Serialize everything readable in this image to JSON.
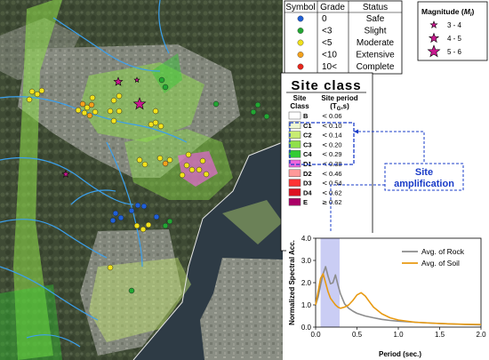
{
  "grade_legend": {
    "headers": [
      "Symbol",
      "Grade",
      "Status"
    ],
    "rows": [
      {
        "color": "#1f5fd6",
        "grade": "0",
        "status": "Safe"
      },
      {
        "color": "#22a632",
        "grade": "<3",
        "status": "Slight"
      },
      {
        "color": "#f1e21b",
        "grade": "<5",
        "status": "Moderate"
      },
      {
        "color": "#f4a11c",
        "grade": "<10",
        "status": "Extensive"
      },
      {
        "color": "#e8261c",
        "grade": "10<",
        "status": "Complete"
      }
    ]
  },
  "magnitude_legend": {
    "title": "Magnitude (",
    "title_ml": "M",
    "title_sub": "l",
    "title_end": ")",
    "star_color": "#c8188e",
    "items": [
      {
        "label": "3 - 4",
        "size": "small"
      },
      {
        "label": "4 - 5",
        "size": "medium"
      },
      {
        "label": "5 - 6",
        "size": "large"
      }
    ]
  },
  "site_class": {
    "title": "Site class",
    "col_class": "Site",
    "col_class2": "Class",
    "col_period": "Site period",
    "col_period2": "(T",
    "col_period_sub": "G",
    "col_period_end": ",s)",
    "rows": [
      {
        "code": "B",
        "op": "<",
        "value": "0.06",
        "color": "#ffffff"
      },
      {
        "code": "C1",
        "op": "<",
        "value": "0.10",
        "color": "#eef7d2"
      },
      {
        "code": "C2",
        "op": "<",
        "value": "0.14",
        "color": "#c8ec72"
      },
      {
        "code": "C3",
        "op": "<",
        "value": "0.20",
        "color": "#8fe04a"
      },
      {
        "code": "C4",
        "op": "<",
        "value": "0.29",
        "color": "#33cc33"
      },
      {
        "code": "D1",
        "op": "<",
        "value": "0.38",
        "color": "#ee66dd"
      },
      {
        "code": "D2",
        "op": "<",
        "value": "0.46",
        "color": "#ff9999"
      },
      {
        "code": "D3",
        "op": "<",
        "value": "0.54",
        "color": "#ff3333"
      },
      {
        "code": "D4",
        "op": "<",
        "value": "0.62",
        "color": "#dd1122"
      },
      {
        "code": "E",
        "op": "≥",
        "value": "0.62",
        "color": "#aa0066"
      }
    ]
  },
  "annotation": {
    "line1": "Site",
    "line2": "amplification",
    "color": "#1a3cc8"
  },
  "chart_data": {
    "type": "line",
    "xlabel": "Period (sec.)",
    "ylabel": "Normalized Spectral Acc.",
    "xlim": [
      0,
      2.0
    ],
    "ylim": [
      0,
      4.0
    ],
    "xticks": [
      "0.0",
      "0.5",
      "1.0",
      "1.5",
      "2.0"
    ],
    "yticks": [
      "0.0",
      "1.0",
      "2.0",
      "3.0",
      "4.0"
    ],
    "highlight_band": [
      0.06,
      0.29
    ],
    "legend_position": "top-right",
    "series": [
      {
        "name": "Avg. of Rock",
        "color": "#8c8c8c",
        "x": [
          0.0,
          0.03,
          0.06,
          0.09,
          0.12,
          0.15,
          0.18,
          0.21,
          0.24,
          0.27,
          0.3,
          0.35,
          0.4,
          0.45,
          0.5,
          0.6,
          0.7,
          0.8,
          0.9,
          1.0,
          1.2,
          1.4,
          1.6,
          1.8,
          2.0
        ],
        "y": [
          1.0,
          1.35,
          1.9,
          2.4,
          2.72,
          2.3,
          1.95,
          2.0,
          2.35,
          1.9,
          1.5,
          1.05,
          0.85,
          0.72,
          0.62,
          0.5,
          0.42,
          0.35,
          0.3,
          0.27,
          0.22,
          0.18,
          0.15,
          0.12,
          0.1
        ]
      },
      {
        "name": "Avg. of Soil",
        "color": "#e89a12",
        "x": [
          0.0,
          0.03,
          0.06,
          0.09,
          0.12,
          0.15,
          0.18,
          0.21,
          0.24,
          0.27,
          0.3,
          0.35,
          0.4,
          0.45,
          0.5,
          0.55,
          0.6,
          0.65,
          0.7,
          0.8,
          0.9,
          1.0,
          1.2,
          1.4,
          1.6,
          1.8,
          2.0
        ],
        "y": [
          1.0,
          1.6,
          2.2,
          2.4,
          2.0,
          1.6,
          1.3,
          1.15,
          1.0,
          0.9,
          0.85,
          0.9,
          1.0,
          1.2,
          1.45,
          1.55,
          1.4,
          1.15,
          0.9,
          0.6,
          0.42,
          0.32,
          0.22,
          0.18,
          0.15,
          0.13,
          0.12
        ]
      }
    ]
  },
  "map": {
    "stars": [
      {
        "x": 133,
        "y": 92,
        "r": 5,
        "size": "medium"
      },
      {
        "x": 157,
        "y": 117,
        "r": 7,
        "size": "large"
      },
      {
        "x": 154,
        "y": 90,
        "r": 3,
        "size": "small"
      },
      {
        "x": 74,
        "y": 196,
        "r": 4,
        "size": "small"
      }
    ],
    "buildings": [
      {
        "x": 36,
        "y": 103,
        "c": 2
      },
      {
        "x": 42,
        "y": 106,
        "c": 2
      },
      {
        "x": 47,
        "y": 102,
        "c": 2
      },
      {
        "x": 33,
        "y": 112,
        "c": 2
      },
      {
        "x": 93,
        "y": 117,
        "c": 3
      },
      {
        "x": 98,
        "y": 121,
        "c": 2
      },
      {
        "x": 103,
        "y": 118,
        "c": 3
      },
      {
        "x": 95,
        "y": 127,
        "c": 2
      },
      {
        "x": 101,
        "y": 130,
        "c": 3
      },
      {
        "x": 107,
        "y": 126,
        "c": 2
      },
      {
        "x": 88,
        "y": 124,
        "c": 2
      },
      {
        "x": 104,
        "y": 110,
        "c": 2
      },
      {
        "x": 128,
        "y": 113,
        "c": 2
      },
      {
        "x": 134,
        "y": 108,
        "c": 2
      },
      {
        "x": 134,
        "y": 125,
        "c": 2
      },
      {
        "x": 128,
        "y": 136,
        "c": 2
      },
      {
        "x": 124,
        "y": 125,
        "c": 2
      },
      {
        "x": 182,
        "y": 90,
        "c": 1
      },
      {
        "x": 186,
        "y": 98,
        "c": 1
      },
      {
        "x": 175,
        "y": 125,
        "c": 2
      },
      {
        "x": 170,
        "y": 140,
        "c": 2
      },
      {
        "x": 175,
        "y": 138,
        "c": 2
      },
      {
        "x": 181,
        "y": 142,
        "c": 2
      },
      {
        "x": 243,
        "y": 117,
        "c": 1
      },
      {
        "x": 285,
        "y": 126,
        "c": 1
      },
      {
        "x": 290,
        "y": 118,
        "c": 1
      },
      {
        "x": 300,
        "y": 131,
        "c": 1
      },
      {
        "x": 157,
        "y": 180,
        "c": 2
      },
      {
        "x": 163,
        "y": 185,
        "c": 2
      },
      {
        "x": 180,
        "y": 178,
        "c": 2
      },
      {
        "x": 186,
        "y": 184,
        "c": 3
      },
      {
        "x": 191,
        "y": 180,
        "c": 2
      },
      {
        "x": 210,
        "y": 186,
        "c": 2
      },
      {
        "x": 216,
        "y": 191,
        "c": 2
      },
      {
        "x": 228,
        "y": 181,
        "c": 2
      },
      {
        "x": 224,
        "y": 191,
        "c": 2
      },
      {
        "x": 232,
        "y": 196,
        "c": 2
      },
      {
        "x": 205,
        "y": 197,
        "c": 2
      },
      {
        "x": 154,
        "y": 254,
        "c": 2
      },
      {
        "x": 161,
        "y": 258,
        "c": 2
      },
      {
        "x": 167,
        "y": 253,
        "c": 2
      },
      {
        "x": 186,
        "y": 254,
        "c": 1
      },
      {
        "x": 191,
        "y": 249,
        "c": 1
      },
      {
        "x": 130,
        "y": 240,
        "c": 0
      },
      {
        "x": 136,
        "y": 245,
        "c": 0
      },
      {
        "x": 127,
        "y": 248,
        "c": 0
      },
      {
        "x": 148,
        "y": 237,
        "c": 0
      },
      {
        "x": 162,
        "y": 232,
        "c": 0
      },
      {
        "x": 155,
        "y": 231,
        "c": 0
      },
      {
        "x": 176,
        "y": 244,
        "c": 0
      },
      {
        "x": 124,
        "y": 301,
        "c": 2
      },
      {
        "x": 148,
        "y": 327,
        "c": 1
      },
      {
        "x": 212,
        "y": 174,
        "c": 2
      }
    ]
  }
}
